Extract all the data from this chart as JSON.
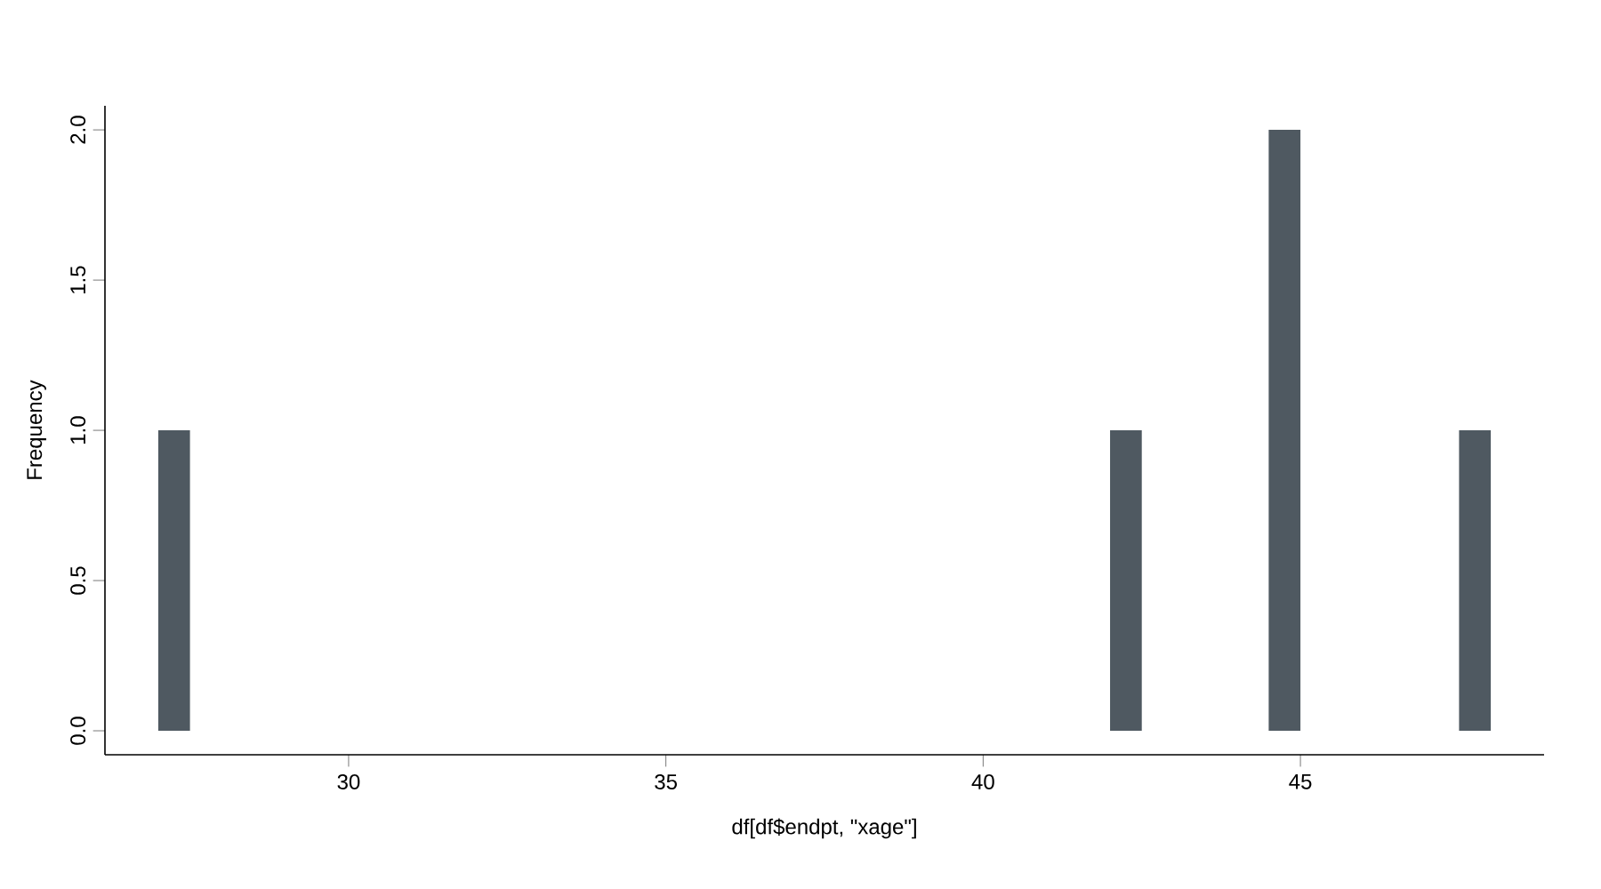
{
  "chart_data": {
    "type": "histogram",
    "xlabel": "df[df$endpt, \"xage\"]",
    "ylabel": "Frequency",
    "color": "#4f5961",
    "bins": [
      27,
      27.5,
      28,
      28.5,
      29,
      29.5,
      30,
      30.5,
      31,
      31.5,
      32,
      32.5,
      33,
      33.5,
      34,
      34.5,
      35,
      35.5,
      36,
      36.5,
      37,
      37.5,
      38,
      38.5,
      39,
      39.5,
      40,
      40.5,
      41,
      41.5,
      42,
      42.5,
      43,
      43.5,
      44,
      44.5,
      45,
      45.5,
      46,
      46.5,
      47,
      47.5,
      48
    ],
    "values": [
      1,
      0,
      0,
      0,
      0,
      0,
      0,
      0,
      0,
      0,
      0,
      0,
      0,
      0,
      0,
      0,
      0,
      0,
      0,
      0,
      0,
      0,
      0,
      0,
      0,
      0,
      0,
      0,
      0,
      0,
      1,
      0,
      0,
      0,
      0,
      2,
      0,
      0,
      0,
      0,
      0,
      1
    ],
    "xlim": [
      26.16,
      48.84
    ],
    "ylim": [
      -0.08,
      2.08
    ],
    "xticks": [
      30,
      35,
      40,
      45
    ],
    "yticks": [
      {
        "value": 0,
        "label": "0.0"
      },
      {
        "value": 0.5,
        "label": "0.5"
      },
      {
        "value": 1,
        "label": "1.0"
      },
      {
        "value": 1.5,
        "label": "1.5"
      },
      {
        "value": 2,
        "label": "2.0"
      }
    ],
    "grid": false
  }
}
